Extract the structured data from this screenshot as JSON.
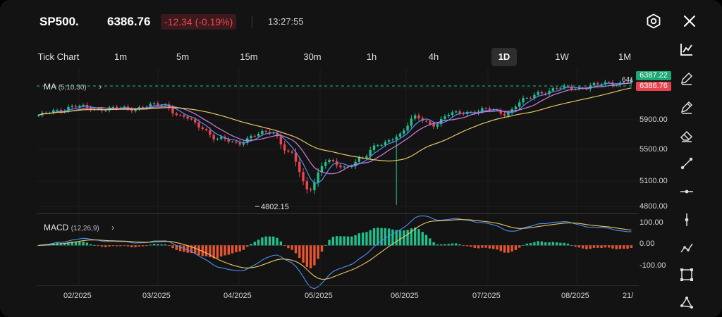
{
  "header": {
    "symbol": "SP500.",
    "price": "6386.76",
    "change": "-12.34 (-0.19%)",
    "time": "13:27:55",
    "settings_icon": "hexagon-settings-icon",
    "close_icon": "close-icon"
  },
  "timeframes": [
    {
      "label": "Tick Chart",
      "active": false
    },
    {
      "label": "1m",
      "active": false
    },
    {
      "label": "5m",
      "active": false
    },
    {
      "label": "15m",
      "active": false
    },
    {
      "label": "30m",
      "active": false
    },
    {
      "label": "1h",
      "active": false
    },
    {
      "label": "4h",
      "active": false
    },
    {
      "label": "1D",
      "active": true
    },
    {
      "label": "1W",
      "active": false
    },
    {
      "label": "1M",
      "active": false
    }
  ],
  "ma": {
    "label": "MA",
    "params": "(5,10,30)"
  },
  "macd": {
    "label": "MACD",
    "params": "(12,26,9)"
  },
  "price_tags": {
    "ask": "6387.22",
    "bid": "6386.76",
    "partial": "64٤"
  },
  "min_label": "4802.15",
  "colors": {
    "up": "#1fc08c",
    "down": "#f0454f",
    "ma5": "#4f8ff7",
    "ma10": "#d47ee0",
    "ma30": "#e8c766",
    "macd_line": "#4f8ff7",
    "signal_line": "#e8c766"
  },
  "toolbar": [
    {
      "name": "line-chart-icon"
    },
    {
      "name": "pencil-icon"
    },
    {
      "name": "pen-icon"
    },
    {
      "name": "eraser-icon"
    },
    {
      "name": "trend-line-icon"
    },
    {
      "name": "horizontal-line-icon"
    },
    {
      "name": "vertical-line-icon"
    },
    {
      "name": "polyline-icon"
    },
    {
      "name": "rectangle-icon"
    },
    {
      "name": "triangle-icon"
    }
  ],
  "chart_data": {
    "type": "candlestick",
    "symbol": "SP500.",
    "x_ticks": [
      "02/2025",
      "03/2025",
      "04/2025",
      "05/2025",
      "06/2025",
      "07/2025",
      "08/2025",
      "21/"
    ],
    "y_ticks": [
      "5900.00",
      "5500.00",
      "5100.00",
      "4800.00"
    ],
    "ylim": [
      4720,
      6520
    ],
    "close_by_week": [
      [
        "01/2025 wk1",
        5930
      ],
      [
        "01/2025 wk2",
        6020
      ],
      [
        "01/2025 wk3",
        6050
      ],
      [
        "01/2025 wk4",
        6040
      ],
      [
        "02/2025 wk1",
        6025
      ],
      [
        "02/2025 wk2",
        6035
      ],
      [
        "02/2025 wk3",
        6060
      ],
      [
        "02/2025 wk4",
        6080
      ],
      [
        "03/2025 wk1",
        5930
      ],
      [
        "03/2025 wk2",
        5800
      ],
      [
        "03/2025 wk3",
        5650
      ],
      [
        "03/2025 wk4",
        5580
      ],
      [
        "04/2025 wk1",
        5700
      ],
      [
        "04/2025 wk2",
        5720
      ],
      [
        "04/2025 wk3",
        5480
      ],
      [
        "04/2025 wk4",
        4980
      ],
      [
        "04/2025 wk5",
        5380
      ],
      [
        "05/2025 wk1",
        5260
      ],
      [
        "05/2025 wk2",
        5420
      ],
      [
        "05/2025 wk3",
        5560
      ],
      [
        "05/2025 wk4",
        5700
      ],
      [
        "05/2025 wk5",
        5910
      ],
      [
        "06/2025 wk1",
        5840
      ],
      [
        "06/2025 wk2",
        5960
      ],
      [
        "06/2025 wk3",
        6000
      ],
      [
        "06/2025 wk4",
        6010
      ],
      [
        "07/2025 wk1",
        5980
      ],
      [
        "07/2025 wk2",
        6130
      ],
      [
        "07/2025 wk3",
        6250
      ],
      [
        "07/2025 wk4",
        6290
      ],
      [
        "08/2025 wk1",
        6300
      ],
      [
        "08/2025 wk2",
        6330
      ],
      [
        "08/2025 wk3",
        6360
      ],
      [
        "08/2025 wk4",
        6387
      ]
    ],
    "min_value": 4802.15,
    "macd": {
      "y_ticks": [
        "100.00",
        "0.00",
        "-100.00"
      ],
      "ylim": [
        -170,
        130
      ],
      "histogram_trend": "positive Jan-Feb, negative Mar-Apr (min ~-60), positive May (max ~55), small Jun-Aug"
    }
  }
}
